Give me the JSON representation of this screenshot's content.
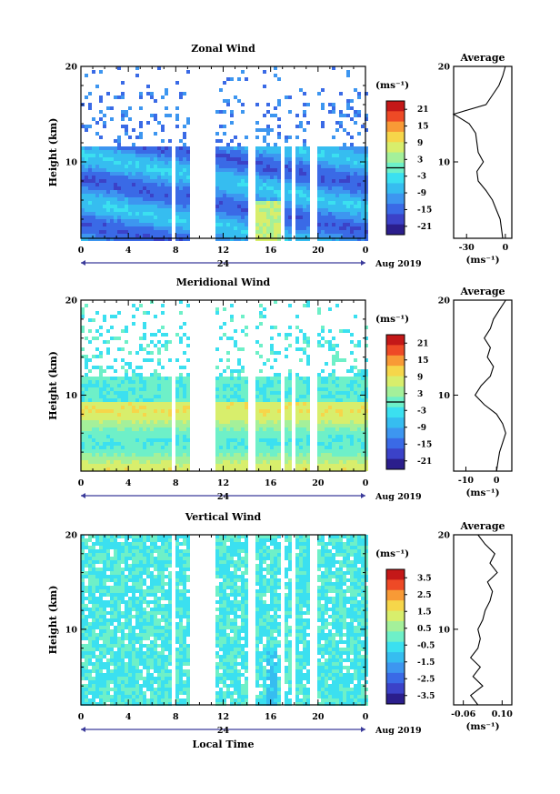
{
  "figure": {
    "xlabel": "Local Time",
    "date_label": "Aug 2019",
    "day_label": "24",
    "ylabel": "Height (km)",
    "unit": "(ms⁻¹)",
    "avg_title": "Average"
  },
  "chart_data": [
    {
      "type": "heatmap",
      "title": "Zonal Wind",
      "xticks": [
        "0",
        "4",
        "8",
        "12",
        "16",
        "20",
        "0"
      ],
      "yticks": [
        "20",
        "10"
      ],
      "ylim": [
        2,
        20
      ],
      "colorbar": {
        "labels": [
          "21",
          "15",
          "9",
          "3",
          "-3",
          "-9",
          "-15",
          "-21"
        ],
        "range": [
          -24,
          24
        ],
        "contour_at": 0
      },
      "gaps_hours": [
        7.6,
        9.2,
        14.2,
        16.9,
        17.8,
        19.5
      ],
      "average": {
        "xticks": [
          "-30",
          "0"
        ],
        "xlim": [
          -40,
          5
        ],
        "heights": [
          2,
          3,
          4,
          5,
          6,
          7,
          8,
          9,
          10,
          11,
          12,
          13,
          14,
          15,
          16,
          17,
          18,
          19,
          20
        ],
        "values": [
          -2,
          -3,
          -4,
          -7,
          -10,
          -15,
          -21,
          -22,
          -17,
          -21,
          -22,
          -23,
          -28,
          -40,
          -15,
          -10,
          -5,
          -2,
          0
        ]
      }
    },
    {
      "type": "heatmap",
      "title": "Meridional Wind",
      "xticks": [
        "0",
        "4",
        "8",
        "12",
        "16",
        "20",
        "0"
      ],
      "yticks": [
        "20",
        "10"
      ],
      "ylim": [
        2,
        20
      ],
      "colorbar": {
        "labels": [
          "21",
          "15",
          "9",
          "3",
          "-3",
          "-9",
          "-15",
          "-21"
        ],
        "range": [
          -24,
          24
        ],
        "contour_at": 0
      },
      "gaps_hours": [
        7.6,
        9.2,
        14.2,
        16.9,
        17.8,
        19.5
      ],
      "average": {
        "xticks": [
          "-10",
          "0"
        ],
        "xlim": [
          -14,
          5
        ],
        "heights": [
          2,
          3,
          4,
          5,
          6,
          7,
          8,
          9,
          10,
          11,
          12,
          13,
          14,
          15,
          16,
          17,
          18,
          19,
          20
        ],
        "values": [
          0,
          0.5,
          1,
          2,
          3,
          2,
          0,
          -4,
          -7,
          -5,
          -2,
          -1,
          -3,
          -2,
          -4,
          -2,
          -1,
          1,
          3
        ]
      }
    },
    {
      "type": "heatmap",
      "title": "Vertical Wind",
      "xticks": [
        "0",
        "4",
        "8",
        "12",
        "16",
        "20",
        "0"
      ],
      "yticks": [
        "20",
        "10"
      ],
      "ylim": [
        2,
        20
      ],
      "colorbar": {
        "labels": [
          "3.5",
          "2.5",
          "1.5",
          "0.5",
          "-0.5",
          "-1.5",
          "-2.5",
          "-3.5"
        ],
        "range": [
          -4,
          4
        ],
        "contour_at": null
      },
      "gaps_hours": [
        7.6,
        9.2,
        14.2,
        16.9,
        17.8,
        19.5
      ],
      "average": {
        "xticks": [
          "-0.06",
          "0.10"
        ],
        "xlim": [
          -0.1,
          0.14
        ],
        "heights": [
          2,
          3,
          4,
          5,
          6,
          7,
          8,
          9,
          10,
          11,
          12,
          13,
          14,
          15,
          16,
          17,
          18,
          19,
          20
        ],
        "values": [
          0.0,
          -0.03,
          0.02,
          -0.02,
          0.01,
          -0.03,
          0.0,
          0.01,
          0.0,
          0.02,
          0.03,
          0.05,
          0.06,
          0.04,
          0.08,
          0.05,
          0.07,
          0.03,
          0.0
        ]
      }
    }
  ]
}
